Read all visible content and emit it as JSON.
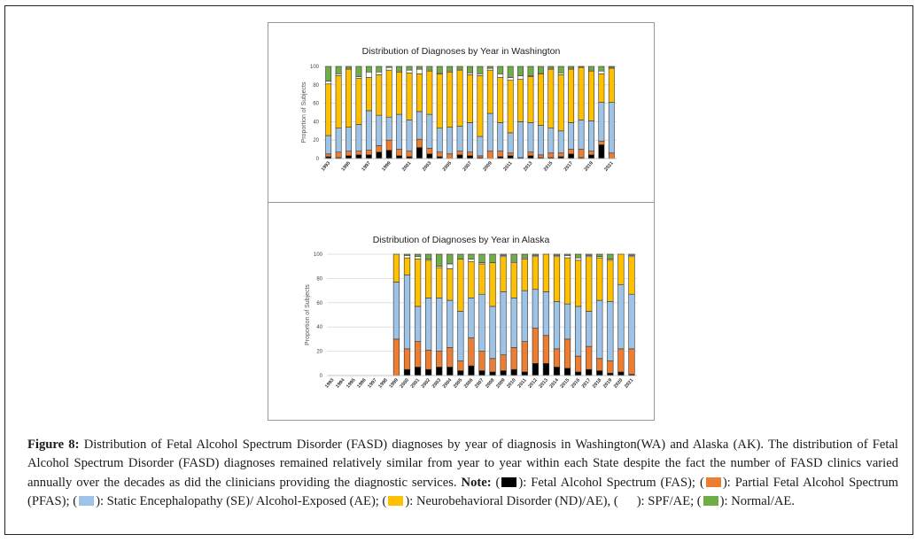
{
  "colors": {
    "FAS": "#000000",
    "PFAS": "#ED7D31",
    "SE": "#9DC3E6",
    "ND": "#FFC000",
    "SPF": "#FFFFFF",
    "Normal": "#70AD47"
  },
  "chart_data": [
    {
      "type": "bar",
      "stacked": true,
      "title": "Distribution of Diagnoses by Year in Washington",
      "xlabel": "",
      "ylabel": "Proportion of Subjects",
      "ylim": [
        0,
        100
      ],
      "yticks": [
        0,
        20,
        40,
        60,
        80,
        100
      ],
      "grid": true,
      "categories": [
        "1993",
        "1994",
        "1995",
        "1996",
        "1997",
        "1998",
        "1999",
        "2000",
        "2001",
        "2002",
        "2003",
        "2004",
        "2005",
        "2006",
        "2007",
        "2008",
        "2009",
        "2010",
        "2011",
        "2012",
        "2013",
        "2014",
        "2015",
        "2016",
        "2017",
        "2018",
        "2019",
        "2020",
        "2021"
      ],
      "tick_labels_shown": [
        "1993",
        "1995",
        "1997",
        "1999",
        "2001",
        "2003",
        "2005",
        "2007",
        "2009",
        "2011",
        "2013",
        "2015",
        "2017",
        "2019",
        "2021"
      ],
      "series_keys": [
        "FAS",
        "PFAS",
        "SE",
        "ND",
        "SPF",
        "Normal"
      ],
      "values": [
        [
          2,
          3,
          20,
          56,
          3,
          16
        ],
        [
          1,
          6,
          26,
          57,
          2,
          8
        ],
        [
          3,
          5,
          26,
          63,
          1,
          2
        ],
        [
          4,
          4,
          29,
          50,
          2,
          11
        ],
        [
          4,
          5,
          43,
          36,
          6,
          6
        ],
        [
          7,
          7,
          33,
          44,
          3,
          6
        ],
        [
          9,
          11,
          25,
          51,
          3,
          1
        ],
        [
          3,
          7,
          38,
          46,
          1,
          5
        ],
        [
          2,
          6,
          34,
          51,
          3,
          4
        ],
        [
          12,
          9,
          30,
          41,
          5,
          3
        ],
        [
          5,
          6,
          37,
          47,
          1,
          4
        ],
        [
          2,
          5,
          26,
          59,
          1,
          7
        ],
        [
          0,
          5,
          29,
          60,
          1,
          5
        ],
        [
          4,
          4,
          27,
          61,
          1,
          3
        ],
        [
          3,
          4,
          32,
          52,
          2,
          7
        ],
        [
          1,
          2,
          21,
          66,
          2,
          8
        ],
        [
          0,
          8,
          41,
          47,
          2,
          2
        ],
        [
          2,
          6,
          31,
          49,
          4,
          8
        ],
        [
          3,
          3,
          22,
          57,
          3,
          12
        ],
        [
          1,
          0,
          39,
          46,
          4,
          10
        ],
        [
          3,
          4,
          32,
          50,
          1,
          10
        ],
        [
          1,
          3,
          32,
          56,
          1,
          7
        ],
        [
          1,
          5,
          27,
          64,
          1,
          2
        ],
        [
          2,
          4,
          24,
          61,
          2,
          7
        ],
        [
          5,
          5,
          29,
          58,
          1,
          2
        ],
        [
          1,
          9,
          32,
          57,
          0,
          1
        ],
        [
          4,
          4,
          33,
          54,
          1,
          4
        ],
        [
          15,
          4,
          42,
          31,
          3,
          5
        ],
        [
          0,
          6,
          55,
          37,
          1,
          1
        ]
      ]
    },
    {
      "type": "bar",
      "stacked": true,
      "title": "Distribution of Diagnoses by Year in Alaska",
      "xlabel": "",
      "ylabel": "Proportion of Subjects",
      "ylim": [
        0,
        100
      ],
      "yticks": [
        0,
        20,
        40,
        60,
        80,
        100
      ],
      "grid": true,
      "categories": [
        "1993",
        "1994",
        "1995",
        "1996",
        "1997",
        "1998",
        "1999",
        "2000",
        "2001",
        "2002",
        "2003",
        "2004",
        "2005",
        "2006",
        "2007",
        "2008",
        "2009",
        "2010",
        "2011",
        "2012",
        "2013",
        "2014",
        "2015",
        "2016",
        "2017",
        "2018",
        "2019",
        "2020",
        "2021"
      ],
      "tick_labels_shown": [
        "1993",
        "1994",
        "1995",
        "1996",
        "1997",
        "1998",
        "1999",
        "2000",
        "2001",
        "2002",
        "2003",
        "2004",
        "2005",
        "2006",
        "2007",
        "2008",
        "2009",
        "2010",
        "2011",
        "2012",
        "2013",
        "2014",
        "2015",
        "2016",
        "2017",
        "2018",
        "2019",
        "2020",
        "2021"
      ],
      "series_keys": [
        "FAS",
        "PFAS",
        "SE",
        "ND",
        "SPF",
        "Normal"
      ],
      "values": [
        [
          0,
          0,
          0,
          0,
          0,
          0
        ],
        [
          0,
          0,
          0,
          0,
          0,
          0
        ],
        [
          0,
          0,
          0,
          0,
          0,
          0
        ],
        [
          0,
          0,
          0,
          0,
          0,
          0
        ],
        [
          0,
          0,
          0,
          0,
          0,
          0
        ],
        [
          0,
          0,
          0,
          0,
          0,
          0
        ],
        [
          0,
          30,
          47,
          23,
          0,
          0
        ],
        [
          5,
          17,
          61,
          14,
          2,
          1
        ],
        [
          7,
          21,
          29,
          39,
          2,
          2
        ],
        [
          5,
          16,
          43,
          31,
          1,
          4
        ],
        [
          7,
          13,
          44,
          25,
          1,
          10
        ],
        [
          7,
          16,
          39,
          26,
          4,
          8
        ],
        [
          4,
          8,
          41,
          43,
          0,
          4
        ],
        [
          8,
          23,
          33,
          30,
          2,
          4
        ],
        [
          4,
          16,
          47,
          25,
          1,
          7
        ],
        [
          3,
          11,
          43,
          36,
          0,
          7
        ],
        [
          4,
          13,
          52,
          29,
          1,
          1
        ],
        [
          5,
          18,
          41,
          29,
          1,
          6
        ],
        [
          3,
          25,
          42,
          26,
          1,
          3
        ],
        [
          10,
          29,
          32,
          27,
          1,
          1
        ],
        [
          10,
          23,
          36,
          31,
          0,
          0
        ],
        [
          7,
          15,
          39,
          37,
          1,
          1
        ],
        [
          6,
          24,
          29,
          38,
          2,
          1
        ],
        [
          3,
          13,
          41,
          38,
          2,
          3
        ],
        [
          5,
          19,
          29,
          45,
          1,
          1
        ],
        [
          4,
          10,
          48,
          35,
          1,
          2
        ],
        [
          2,
          10,
          49,
          34,
          1,
          4
        ],
        [
          3,
          19,
          53,
          25,
          0,
          0
        ],
        [
          1,
          21,
          45,
          31,
          1,
          1
        ]
      ]
    }
  ],
  "caption": {
    "label": "Figure 8:",
    "text": " Distribution of Fetal Alcohol Spectrum Disorder (FASD) diagnoses by year of diagnosis in Washington(WA) and Alaska (AK). The distribution of Fetal Alcohol Spectrum Disorder (FASD) diagnoses remained relatively similar from year to year within each State despite the fact the number of FASD clinics varied annually over the decades as did the clinicians providing the diagnostic services. ",
    "note_label": "Note:",
    "legend": [
      {
        "key": "FAS",
        "text": "): Fetal Alcohol Spectrum (FAS); ("
      },
      {
        "key": "PFAS",
        "text": "): Partial Fetal Alcohol Spectrum (PFAS); ("
      },
      {
        "key": "SE",
        "text": "): Static Encephalopathy (SE)/ Alcohol-Exposed (AE); ("
      },
      {
        "key": "ND",
        "text": "): Neurobehavioral Disorder (ND)/AE), ("
      },
      {
        "key": "SPF",
        "text": "): SPF/AE; ("
      },
      {
        "key": "Normal",
        "text": "): Normal/AE."
      }
    ]
  }
}
